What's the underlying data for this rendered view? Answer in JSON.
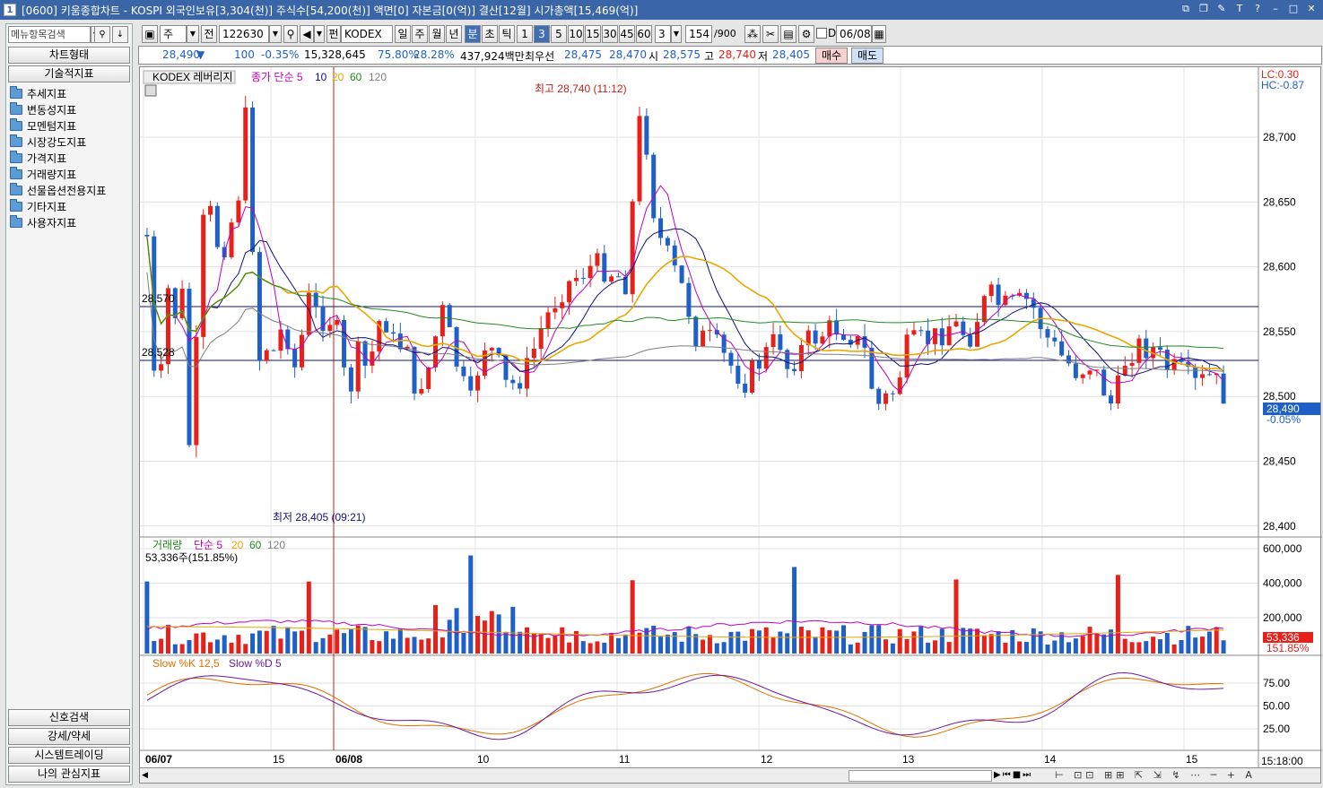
{
  "window": {
    "title": "[0600] 키움종합차트 - KOSPI 외국인보유[3,304(천)] 주식수[54,200(천)] 액면[0] 자본금[0(억)] 결산[12월] 시가총액[15,469(억)]",
    "icon_label": "1"
  },
  "sidebar": {
    "search_placeholder": "메뉴항목검색",
    "top_buttons": [
      "차트형태",
      "기술적지표"
    ],
    "tree": [
      "추세지표",
      "변동성지표",
      "모멘텀지표",
      "시장강도지표",
      "가격지표",
      "거래량지표",
      "선물옵션전용지표",
      "기타지표",
      "사용자지표"
    ],
    "bottom_buttons": [
      "신호검색",
      "강세/약세",
      "시스템트레이딩",
      "나의 관심지표"
    ]
  },
  "toolbar": {
    "period_sel": "주",
    "prev_label": "전",
    "code": "122630",
    "name_prefix": "펀",
    "name": "KODEX 레버",
    "periods": [
      "일",
      "주",
      "월",
      "년",
      "분",
      "초",
      "틱"
    ],
    "active_period": "분",
    "intervals": [
      "1",
      "3",
      "5",
      "10",
      "15",
      "30",
      "45",
      "60"
    ],
    "active_interval": "3",
    "interval_input": "3",
    "count": "154",
    "count_total": "/900",
    "checkbox_label": "D",
    "date": "06/08"
  },
  "quote": {
    "price": "28,490",
    "arrow": "▼",
    "change": "100",
    "change_pct": "-0.35%",
    "volume": "15,328,645",
    "ratio1": "75.80%",
    "ratio2": "28.28%",
    "amount": "437,924백만",
    "bid_label": "최우선",
    "bid1": "28,475",
    "bid2": "28,470",
    "open_label": "시",
    "open": "28,575",
    "high_label": "고",
    "high": "28,740",
    "low_label": "저",
    "low": "28,405",
    "buy_btn": "매수",
    "sell_btn": "매도"
  },
  "chart": {
    "price_legend": {
      "name": "KODEX 레버리지",
      "ma_label": "종가 단순 5",
      "ma": [
        "10",
        "20",
        "60",
        "120"
      ]
    },
    "lc": "LC:0.30",
    "hc": "HC:-0.87",
    "price_ticks": [
      "28,700",
      "28,650",
      "28,600",
      "28,550",
      "28,500",
      "28,450",
      "28,400"
    ],
    "hlines": [
      "28,570",
      "28,528"
    ],
    "high_annot": "최고 28,740 (11:12)",
    "low_annot": "최저 28,405 (09:21)",
    "last_price": "28,490",
    "last_pct": "-0.05%",
    "vol_legend": {
      "name": "거래량",
      "ma_label": "단순 5",
      "ma": [
        "20",
        "60",
        "120"
      ]
    },
    "vol_value": "53,336주(151.85%)",
    "vol_ticks": [
      "600,000",
      "400,000",
      "200,000"
    ],
    "vol_last": "53,336",
    "vol_last_pct": "151.85%",
    "stoch_legend": {
      "k": "Slow %K 12,5",
      "d": "Slow %D 5"
    },
    "stoch_ticks": [
      "75.00",
      "50.00",
      "25.00"
    ],
    "time_labels": [
      "06/07",
      "15",
      "06/08",
      "10",
      "11",
      "12",
      "13",
      "14",
      "15"
    ],
    "time_right": "15:18:00"
  },
  "colors": {
    "up": "#e8201a",
    "down": "#1f5fc8",
    "ma5": "#c000c0",
    "ma10": "#10107a",
    "ma20": "#e8a800",
    "ma60": "#208a20",
    "ma120": "#808080"
  }
}
